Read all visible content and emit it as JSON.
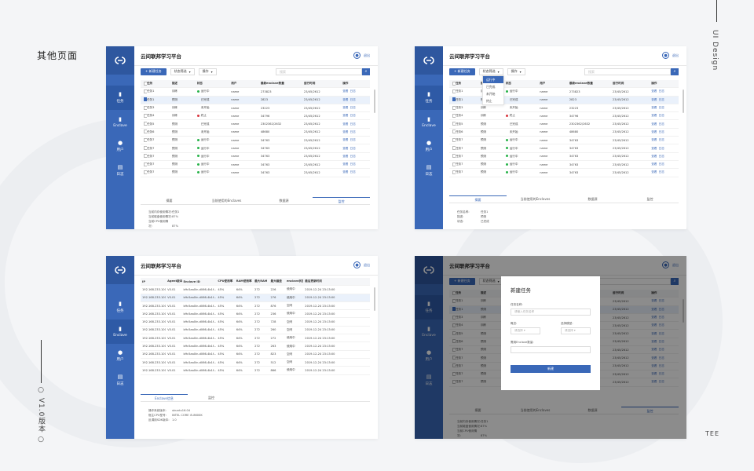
{
  "page_title": "其他页面",
  "side_text": "UI Design",
  "version_text": "V1.0版本",
  "tee_text": "TEE",
  "app": {
    "title": "云间联邦学习平台",
    "logout": "退出",
    "nav": [
      "任务",
      "Enclave",
      "用户",
      "日志"
    ],
    "new_task": "+ 新建任务",
    "status_filter": "状态筛选",
    "ops": "操作",
    "search_placeholder": "搜索",
    "task_headers": [
      "任务",
      "描述",
      "状态",
      "用户",
      "最新enclave数量",
      "运行时间",
      "操作"
    ],
    "task_rows": [
      {
        "name": "任务1",
        "desc": "训练",
        "status": "运行中",
        "user": "name",
        "count": "273823",
        "time": "23/45/2612"
      },
      {
        "name": "任务1",
        "desc": "预测",
        "status": "已完成",
        "user": "name",
        "count": "2823",
        "time": "23/45/2612"
      },
      {
        "name": "任务3",
        "desc": "训练",
        "status": "未开始",
        "user": "name",
        "count": "23223",
        "time": "23/45/2612"
      },
      {
        "name": "任务4",
        "desc": "训练",
        "status": "终止",
        "user": "name",
        "count": "34796",
        "time": "23/45/2612"
      },
      {
        "name": "任务5",
        "desc": "预测",
        "status": "已完成",
        "user": "name",
        "count": "2302362/2632",
        "time": "23/45/2612"
      },
      {
        "name": "任务6",
        "desc": "预测",
        "status": "未开始",
        "user": "name",
        "count": "48680",
        "time": "23/45/2612"
      },
      {
        "name": "任务7",
        "desc": "预测",
        "status": "运行中",
        "user": "name",
        "count": "34763",
        "time": "23/45/2612"
      },
      {
        "name": "任务7",
        "desc": "预测",
        "status": "运行中",
        "user": "name",
        "count": "34763",
        "time": "23/45/2612"
      },
      {
        "name": "任务7",
        "desc": "预测",
        "status": "运行中",
        "user": "name",
        "count": "34763",
        "time": "23/45/2612"
      },
      {
        "name": "任务7",
        "desc": "预测",
        "status": "运行中",
        "user": "name",
        "count": "34763",
        "time": "23/45/2612"
      },
      {
        "name": "任务7",
        "desc": "预测",
        "status": "运行中",
        "user": "name",
        "count": "34763",
        "time": "23/45/2612"
      }
    ],
    "row_actions": [
      "查看",
      "日志"
    ],
    "status_colors": {
      "运行中": "#29b34a",
      "终止": "#d9363e"
    },
    "detail_tabs": [
      "摘要",
      "当前使用的Enclaves",
      "数据源",
      "监控"
    ],
    "monitor_detail": [
      {
        "k": "当前内存使用情况:",
        "v": "任务1"
      },
      {
        "k": "当前磁盘使用情况:",
        "v": "87%"
      },
      {
        "k": "当前CPU使用情况:",
        "v": "87%"
      },
      {
        "k": "网络:",
        "v": "89% 2kb/s   最后时间 22:23:38"
      }
    ],
    "summary_detail": [
      {
        "k": "任务名称:",
        "v": "任务1"
      },
      {
        "k": "描述:",
        "v": "预测"
      },
      {
        "k": "状态:",
        "v": "已完成"
      }
    ],
    "dropdown_options": [
      "运行中",
      "已完成",
      "未开始",
      "终止"
    ],
    "enclave_headers": [
      "IP",
      "Agent版本",
      "Enclave ID",
      "CPU使用率",
      "RAM使用率",
      "最大RAM",
      "最大磁盘",
      "enclave状态",
      "最后更新时间"
    ],
    "enclave_rows": [
      {
        "ip": "192.168.233.100",
        "ver": "V0.01",
        "id": "b9c5aa0in-d066-4b1f...",
        "cpu": "45%",
        "ram": "64%",
        "maxram": "272",
        "disk": "226",
        "st": "使用中",
        "time": "2019-12-24 23:13:00"
      },
      {
        "ip": "192.168.233.100",
        "ver": "V0.01",
        "id": "b9c5aa0in-d066-4b1f...",
        "cpu": "45%",
        "ram": "64%",
        "maxram": "272",
        "disk": "276",
        "st": "使用中",
        "time": "2019-12-24 23:13:00"
      },
      {
        "ip": "192.168.233.100",
        "ver": "V0.01",
        "id": "b9c5aa0in-d066-4b1f...",
        "cpu": "45%",
        "ram": "64%",
        "maxram": "272",
        "disk": "876",
        "st": "空闲",
        "time": "2019-12-24 23:13:00"
      },
      {
        "ip": "192.168.233.100",
        "ver": "V0.01",
        "id": "b9c5aa0in-d066-4b1f...",
        "cpu": "45%",
        "ram": "64%",
        "maxram": "272",
        "disk": "236",
        "st": "使用中",
        "time": "2019-12-24 23:13:00"
      },
      {
        "ip": "192.168.233.100",
        "ver": "V0.01",
        "id": "b9c5aa0in-d066-4b1f...",
        "cpu": "45%",
        "ram": "64%",
        "maxram": "272",
        "disk": "728",
        "st": "空闲",
        "time": "2019-12-24 23:13:00"
      },
      {
        "ip": "192.168.233.100",
        "ver": "V0.01",
        "id": "b9c5aa0in-d066-4b1f...",
        "cpu": "45%",
        "ram": "64%",
        "maxram": "272",
        "disk": "260",
        "st": "空闲",
        "time": "2019-12-24 23:13:00"
      },
      {
        "ip": "192.168.233.100",
        "ver": "V0.01",
        "id": "b9c5aa0in-d066-4b1f...",
        "cpu": "45%",
        "ram": "64%",
        "maxram": "272",
        "disk": "272",
        "st": "使用中",
        "time": "2019-12-24 23:13:00"
      },
      {
        "ip": "192.168.233.100",
        "ver": "V0.01",
        "id": "b9c5aa0in-d066-4b1f...",
        "cpu": "45%",
        "ram": "64%",
        "maxram": "272",
        "disk": "263",
        "st": "使用中",
        "time": "2019-12-24 23:13:00"
      },
      {
        "ip": "192.168.233.100",
        "ver": "V0.01",
        "id": "b9c5aa0in-d066-4b1f...",
        "cpu": "45%",
        "ram": "64%",
        "maxram": "272",
        "disk": "823",
        "st": "空闲",
        "time": "2019-12-24 23:13:00"
      },
      {
        "ip": "192.168.233.100",
        "ver": "V0.01",
        "id": "b9c5aa0in-d066-4b1f...",
        "cpu": "45%",
        "ram": "64%",
        "maxram": "272",
        "disk": "512",
        "st": "空闲",
        "time": "2019-12-24 23:13:00"
      },
      {
        "ip": "192.168.233.100",
        "ver": "V0.01",
        "id": "b9c5aa0in-d066-4b1f...",
        "cpu": "45%",
        "ram": "64%",
        "maxram": "272",
        "disk": "866",
        "st": "使用中",
        "time": "2019-12-24 23:13:00"
      }
    ],
    "enclave_tabs": [
      "Enclave信息",
      "监控"
    ],
    "enclave_detail": [
      {
        "k": "操作系统版本:",
        "v": "ubuntu16.04"
      },
      {
        "k": "宿主CPU型号:",
        "v": "INTEL CORE i5-8600K"
      },
      {
        "k": "反调用SDK版本:",
        "v": "1.0"
      }
    ],
    "modal": {
      "title": "新建任务",
      "name_label": "任务名称:",
      "name_placeholder": "请输入任务名称",
      "type_label": "概念:",
      "type_placeholder": "请选择",
      "model_label": "选择模型:",
      "model_placeholder": "请选择",
      "enclave_label": "需用Enclave数量:",
      "submit": "新建"
    }
  },
  "colors": {
    "primary": "#3a68b8",
    "sidebar": "#3a68b8",
    "sidebar_active": "#2e5aa6"
  }
}
